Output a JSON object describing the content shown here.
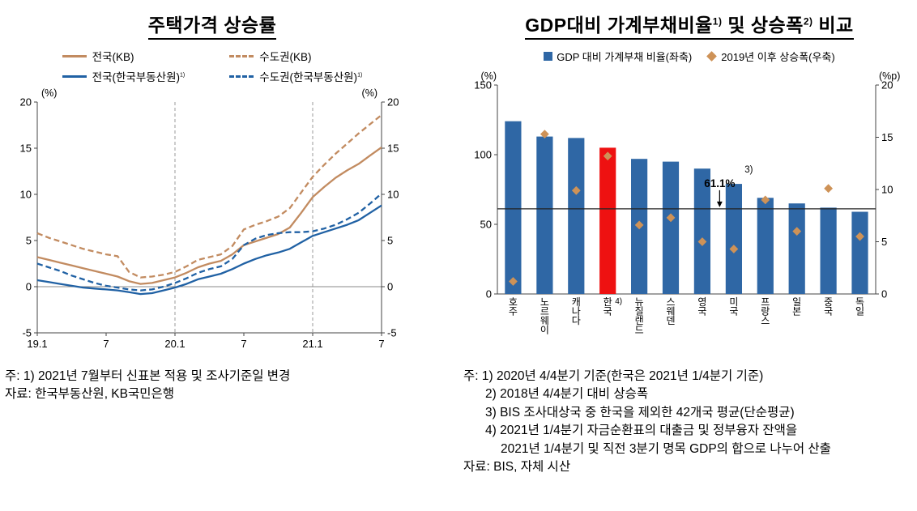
{
  "colors": {
    "kb_line": "#C28B60",
    "reb_line": "#2061A4",
    "bar_blue": "#2F67A5",
    "bar_red": "#EE1111",
    "diamond": "#CE9257",
    "grid": "#999999",
    "axis": "#444444"
  },
  "left_panel": {
    "title": "주택가격 상승률",
    "unit_left": "(%)",
    "unit_right": "(%)",
    "notes": [
      {
        "text": "주: 1) 2021년 7월부터 신표본 적용 및 조사기준일 변경",
        "indent": 0
      },
      {
        "text": "자료: 한국부동산원, KB국민은행",
        "indent": 0
      }
    ]
  },
  "right_panel": {
    "title": {
      "p1": "GDP대비 가계부채비율",
      "s1": "1)",
      "p2": " 및 상승폭",
      "s2": "2)",
      "p3": " 비교"
    },
    "unit_left": "(%)",
    "unit_right": "(%p)",
    "legend": [
      {
        "marker": "square",
        "color": "#2F67A5",
        "label": "GDP 대비 가계부채 비율(좌축)"
      },
      {
        "marker": "diamond",
        "color": "#CE9257",
        "label": "2019년 이후 상승폭(우축)"
      }
    ],
    "notes": [
      {
        "text": "주: 1) 2020년 4/4분기 기준(한국은 2021년 1/4분기 기준)",
        "indent": 0
      },
      {
        "text": "2) 2018년 4/4분기 대비 상승폭",
        "indent": 1
      },
      {
        "text": "3) BIS 조사대상국 중 한국을 제외한 42개국 평균(단순평균)",
        "indent": 1
      },
      {
        "text": "4) 2021년 1/4분기 자금순환표의 대출금 및 정부융자 잔액을",
        "indent": 1
      },
      {
        "text": "2021년 1/4분기 및 직전 3분기 명목 GDP의 합으로 나누어 산출",
        "indent": 2
      },
      {
        "text": "자료: BIS, 자체 시산",
        "indent": 0
      }
    ]
  },
  "chart_data": [
    {
      "type": "line",
      "title": "주택가격 상승률",
      "ylabel": "(%)",
      "ylim": [
        -5,
        20
      ],
      "yticks": [
        -5,
        0,
        5,
        10,
        15,
        20
      ],
      "x_count": 31,
      "xticks": [
        {
          "index": 0,
          "label": "19.1"
        },
        {
          "index": 6,
          "label": "7"
        },
        {
          "index": 12,
          "label": "20.1"
        },
        {
          "index": 18,
          "label": "7"
        },
        {
          "index": 24,
          "label": "21.1"
        },
        {
          "index": 30,
          "label": "7"
        }
      ],
      "vlines": [
        12,
        24
      ],
      "hline": 0,
      "series": [
        {
          "name": "전국(KB)",
          "sup": "",
          "color": "#C28B60",
          "dash": false,
          "values": [
            3.2,
            2.9,
            2.6,
            2.3,
            2.0,
            1.7,
            1.4,
            1.1,
            0.6,
            0.3,
            0.4,
            0.7,
            1.0,
            1.5,
            2.1,
            2.5,
            2.8,
            3.5,
            4.5,
            4.9,
            5.3,
            5.7,
            6.4,
            8.0,
            9.7,
            10.8,
            11.8,
            12.6,
            13.3,
            14.2,
            15.1
          ]
        },
        {
          "name": "수도권(KB)",
          "sup": "",
          "color": "#C28B60",
          "dash": true,
          "values": [
            5.8,
            5.3,
            4.9,
            4.5,
            4.1,
            3.8,
            3.5,
            3.3,
            1.6,
            1.0,
            1.1,
            1.3,
            1.6,
            2.2,
            2.9,
            3.2,
            3.5,
            4.4,
            6.2,
            6.7,
            7.1,
            7.6,
            8.5,
            10.2,
            11.9,
            13.2,
            14.4,
            15.5,
            16.6,
            17.6,
            18.6
          ]
        },
        {
          "name": "전국(한국부동산원)",
          "sup": "1)",
          "color": "#2061A4",
          "dash": false,
          "values": [
            0.7,
            0.5,
            0.3,
            0.1,
            -0.1,
            -0.2,
            -0.3,
            -0.4,
            -0.6,
            -0.8,
            -0.7,
            -0.4,
            -0.1,
            0.3,
            0.8,
            1.1,
            1.4,
            1.9,
            2.5,
            3.0,
            3.4,
            3.7,
            4.1,
            4.8,
            5.5,
            5.9,
            6.3,
            6.7,
            7.2,
            8.0,
            8.8
          ]
        },
        {
          "name": "수도권(한국부동산원)",
          "sup": "1)",
          "color": "#2061A4",
          "dash": true,
          "values": [
            2.5,
            2.1,
            1.7,
            1.2,
            0.8,
            0.4,
            0.1,
            -0.1,
            -0.3,
            -0.4,
            -0.3,
            0.0,
            0.4,
            0.9,
            1.5,
            1.9,
            2.2,
            3.0,
            4.5,
            5.2,
            5.6,
            5.8,
            5.9,
            5.9,
            6.0,
            6.3,
            6.7,
            7.3,
            8.0,
            9.0,
            10.1
          ]
        }
      ]
    },
    {
      "type": "bar",
      "title": "GDP대비 가계부채비율 및 상승폭 비교",
      "categories": [
        "호주",
        "노르웨이",
        "캐나다",
        "한국",
        "뉴질랜드",
        "스웨덴",
        "영국",
        "미국",
        "프랑스",
        "일본",
        "중국",
        "독일"
      ],
      "bar_values": [
        124,
        113,
        112,
        105,
        97,
        95,
        90,
        79,
        69,
        65,
        62,
        59
      ],
      "diamond_values": [
        1.2,
        15.3,
        9.9,
        13.2,
        6.6,
        7.3,
        5.0,
        4.3,
        9.0,
        6.0,
        10.1,
        5.5
      ],
      "bar_color": "#2F67A5",
      "highlight_index": 3,
      "highlight_color": "#EE1111",
      "highlight_sup": "4)",
      "diamond_color": "#CE9257",
      "ylim_left": [
        0,
        150
      ],
      "yticks_left": [
        0,
        50,
        100,
        150
      ],
      "ylim_right": [
        0,
        20
      ],
      "yticks_right": [
        0,
        5,
        10,
        15,
        20
      ],
      "unit_left": "(%)",
      "unit_right": "(%p)",
      "avg_line": 61.1,
      "avg_label": "61.1%",
      "avg_sup": "3)"
    }
  ]
}
